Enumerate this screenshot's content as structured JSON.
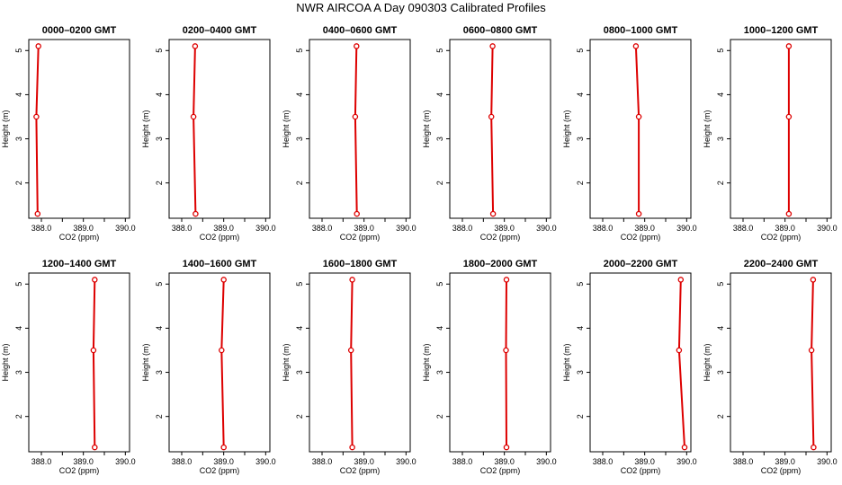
{
  "page": {
    "title": "NWR AIRCOA A  Day 090303  Calibrated Profiles"
  },
  "colors": {
    "line": "#dd0000",
    "axis": "#000000"
  },
  "chart_data": [
    {
      "type": "line",
      "title": "0000–0200 GMT",
      "xlabel": "CO2 (ppm)",
      "ylabel": "Height (m)",
      "xlim": [
        387.7,
        390.1
      ],
      "ylim": [
        1.2,
        5.25
      ],
      "xticks": [
        "388.0",
        "389.0",
        "390.0"
      ],
      "yticks": [
        "2",
        "3",
        "4",
        "5"
      ],
      "series": [
        {
          "x": [
            387.93,
            387.88,
            387.91
          ],
          "y": [
            5.1,
            3.5,
            1.3
          ]
        }
      ]
    },
    {
      "type": "line",
      "title": "0200–0400 GMT",
      "xlabel": "CO2 (ppm)",
      "ylabel": "Height (m)",
      "xlim": [
        387.7,
        390.1
      ],
      "ylim": [
        1.2,
        5.25
      ],
      "xticks": [
        "388.0",
        "389.0",
        "390.0"
      ],
      "yticks": [
        "2",
        "3",
        "4",
        "5"
      ],
      "series": [
        {
          "x": [
            388.32,
            388.28,
            388.33
          ],
          "y": [
            5.1,
            3.5,
            1.3
          ]
        }
      ]
    },
    {
      "type": "line",
      "title": "0400–0600 GMT",
      "xlabel": "CO2 (ppm)",
      "ylabel": "Height (m)",
      "xlim": [
        387.7,
        390.1
      ],
      "ylim": [
        1.2,
        5.25
      ],
      "xticks": [
        "388.0",
        "389.0",
        "390.0"
      ],
      "yticks": [
        "2",
        "3",
        "4",
        "5"
      ],
      "series": [
        {
          "x": [
            388.82,
            388.79,
            388.83
          ],
          "y": [
            5.1,
            3.5,
            1.3
          ]
        }
      ]
    },
    {
      "type": "line",
      "title": "0600–0800 GMT",
      "xlabel": "CO2 (ppm)",
      "ylabel": "Height (m)",
      "xlim": [
        387.7,
        390.1
      ],
      "ylim": [
        1.2,
        5.25
      ],
      "xticks": [
        "388.0",
        "389.0",
        "390.0"
      ],
      "yticks": [
        "2",
        "3",
        "4",
        "5"
      ],
      "series": [
        {
          "x": [
            388.72,
            388.69,
            388.73
          ],
          "y": [
            5.1,
            3.5,
            1.3
          ]
        }
      ]
    },
    {
      "type": "line",
      "title": "0800–1000 GMT",
      "xlabel": "CO2 (ppm)",
      "ylabel": "Height (m)",
      "xlim": [
        387.7,
        390.1
      ],
      "ylim": [
        1.2,
        5.25
      ],
      "xticks": [
        "388.0",
        "389.0",
        "390.0"
      ],
      "yticks": [
        "2",
        "3",
        "4",
        "5"
      ],
      "series": [
        {
          "x": [
            388.79,
            388.86,
            388.86
          ],
          "y": [
            5.1,
            3.5,
            1.3
          ]
        }
      ]
    },
    {
      "type": "line",
      "title": "1000–1200 GMT",
      "xlabel": "CO2 (ppm)",
      "ylabel": "Height (m)",
      "xlim": [
        387.7,
        390.1
      ],
      "ylim": [
        1.2,
        5.25
      ],
      "xticks": [
        "388.0",
        "389.0",
        "390.0"
      ],
      "yticks": [
        "2",
        "3",
        "4",
        "5"
      ],
      "series": [
        {
          "x": [
            389.09,
            389.09,
            389.09
          ],
          "y": [
            5.1,
            3.5,
            1.3
          ]
        }
      ]
    },
    {
      "type": "line",
      "title": "1200–1400 GMT",
      "xlabel": "CO2 (ppm)",
      "ylabel": "Height (m)",
      "xlim": [
        387.7,
        390.1
      ],
      "ylim": [
        1.2,
        5.25
      ],
      "xticks": [
        "388.0",
        "389.0",
        "390.0"
      ],
      "yticks": [
        "2",
        "3",
        "4",
        "5"
      ],
      "series": [
        {
          "x": [
            389.27,
            389.24,
            389.27
          ],
          "y": [
            5.1,
            3.5,
            1.3
          ]
        }
      ]
    },
    {
      "type": "line",
      "title": "1400–1600 GMT",
      "xlabel": "CO2 (ppm)",
      "ylabel": "Height (m)",
      "xlim": [
        387.7,
        390.1
      ],
      "ylim": [
        1.2,
        5.25
      ],
      "xticks": [
        "388.0",
        "389.0",
        "390.0"
      ],
      "yticks": [
        "2",
        "3",
        "4",
        "5"
      ],
      "series": [
        {
          "x": [
            389.0,
            388.95,
            389.0
          ],
          "y": [
            5.1,
            3.5,
            1.3
          ]
        }
      ]
    },
    {
      "type": "line",
      "title": "1600–1800 GMT",
      "xlabel": "CO2 (ppm)",
      "ylabel": "Height (m)",
      "xlim": [
        387.7,
        390.1
      ],
      "ylim": [
        1.2,
        5.25
      ],
      "xticks": [
        "388.0",
        "389.0",
        "390.0"
      ],
      "yticks": [
        "2",
        "3",
        "4",
        "5"
      ],
      "series": [
        {
          "x": [
            388.72,
            388.69,
            388.72
          ],
          "y": [
            5.1,
            3.5,
            1.3
          ]
        }
      ]
    },
    {
      "type": "line",
      "title": "1800–2000 GMT",
      "xlabel": "CO2 (ppm)",
      "ylabel": "Height (m)",
      "xlim": [
        387.7,
        390.1
      ],
      "ylim": [
        1.2,
        5.25
      ],
      "xticks": [
        "388.0",
        "389.0",
        "390.0"
      ],
      "yticks": [
        "2",
        "3",
        "4",
        "5"
      ],
      "series": [
        {
          "x": [
            389.05,
            389.04,
            389.05
          ],
          "y": [
            5.1,
            3.5,
            1.3
          ]
        }
      ]
    },
    {
      "type": "line",
      "title": "2000–2200 GMT",
      "xlabel": "CO2 (ppm)",
      "ylabel": "Height (m)",
      "xlim": [
        387.7,
        390.1
      ],
      "ylim": [
        1.2,
        5.25
      ],
      "xticks": [
        "388.0",
        "389.0",
        "390.0"
      ],
      "yticks": [
        "2",
        "3",
        "4",
        "5"
      ],
      "series": [
        {
          "x": [
            389.86,
            389.82,
            389.95
          ],
          "y": [
            5.1,
            3.5,
            1.3
          ]
        }
      ]
    },
    {
      "type": "line",
      "title": "2200–2400 GMT",
      "xlabel": "CO2 (ppm)",
      "ylabel": "Height (m)",
      "xlim": [
        387.7,
        390.1
      ],
      "ylim": [
        1.2,
        5.25
      ],
      "xticks": [
        "388.0",
        "389.0",
        "390.0"
      ],
      "yticks": [
        "2",
        "3",
        "4",
        "5"
      ],
      "series": [
        {
          "x": [
            389.67,
            389.63,
            389.68
          ],
          "y": [
            5.1,
            3.5,
            1.3
          ]
        }
      ]
    }
  ]
}
